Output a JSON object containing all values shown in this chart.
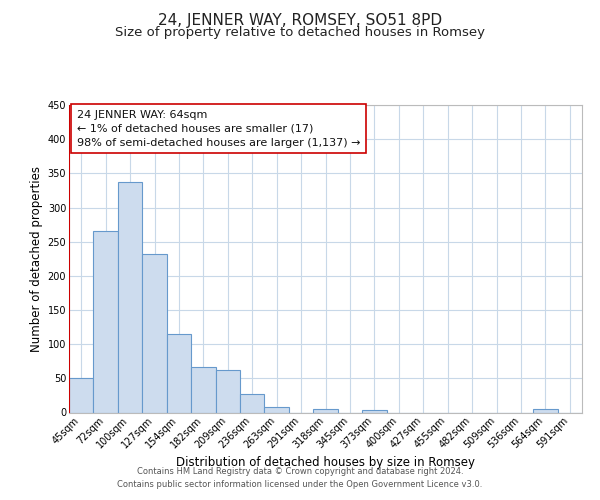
{
  "title": "24, JENNER WAY, ROMSEY, SO51 8PD",
  "subtitle": "Size of property relative to detached houses in Romsey",
  "xlabel": "Distribution of detached houses by size in Romsey",
  "ylabel": "Number of detached properties",
  "bar_labels": [
    "45sqm",
    "72sqm",
    "100sqm",
    "127sqm",
    "154sqm",
    "182sqm",
    "209sqm",
    "236sqm",
    "263sqm",
    "291sqm",
    "318sqm",
    "345sqm",
    "373sqm",
    "400sqm",
    "427sqm",
    "455sqm",
    "482sqm",
    "509sqm",
    "536sqm",
    "564sqm",
    "591sqm"
  ],
  "bar_values": [
    50,
    265,
    338,
    232,
    115,
    67,
    62,
    27,
    8,
    0,
    5,
    0,
    3,
    0,
    0,
    0,
    0,
    0,
    0,
    5,
    0
  ],
  "bar_color": "#cddcee",
  "bar_edge_color": "#6699cc",
  "red_line_x": -0.5,
  "annotation_line1": "24 JENNER WAY: 64sqm",
  "annotation_line2": "← 1% of detached houses are smaller (17)",
  "annotation_line3": "98% of semi-detached houses are larger (1,137) →",
  "annotation_box_facecolor": "#ffffff",
  "annotation_box_edgecolor": "#cc0000",
  "ylim_min": 0,
  "ylim_max": 450,
  "yticks": [
    0,
    50,
    100,
    150,
    200,
    250,
    300,
    350,
    400,
    450
  ],
  "footer_line1": "Contains HM Land Registry data © Crown copyright and database right 2024.",
  "footer_line2": "Contains public sector information licensed under the Open Government Licence v3.0.",
  "bg_color": "#ffffff",
  "grid_color": "#c8d8e8",
  "title_fontsize": 11,
  "subtitle_fontsize": 9.5,
  "ylabel_fontsize": 8.5,
  "xlabel_fontsize": 8.5,
  "tick_fontsize": 7,
  "annotation_fontsize": 8,
  "footer_fontsize": 6
}
